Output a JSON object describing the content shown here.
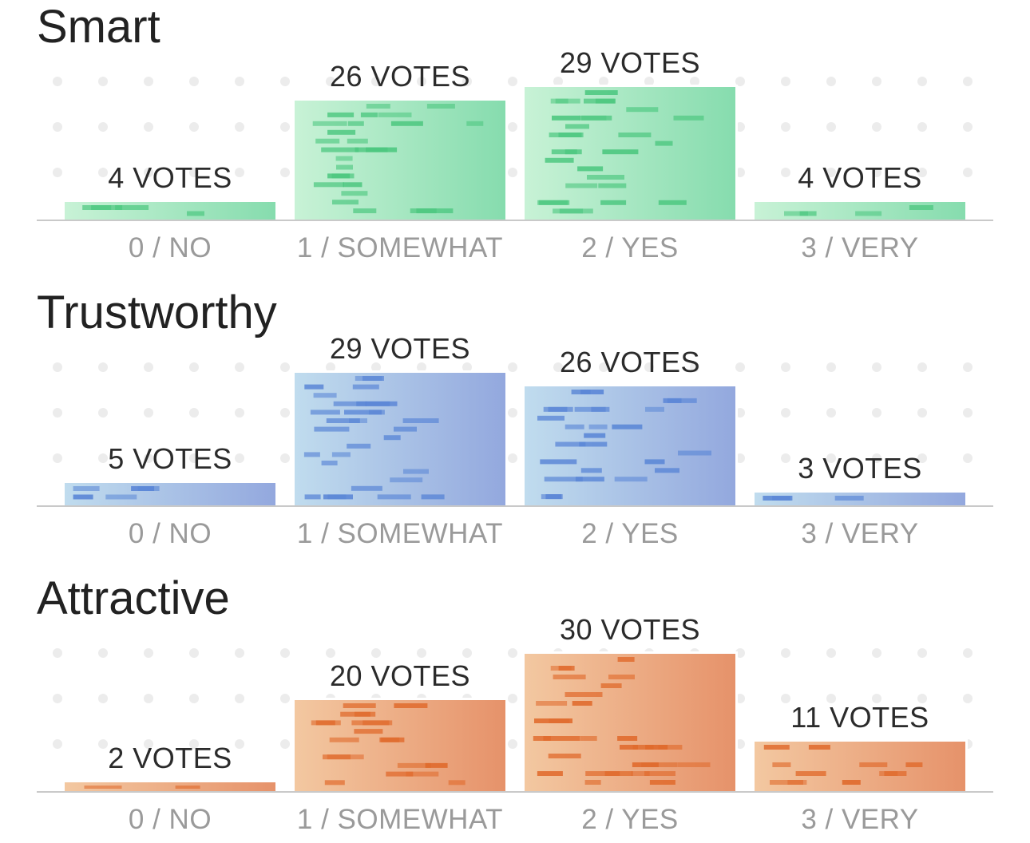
{
  "chart_data": [
    {
      "type": "bar",
      "title": "Smart",
      "categories": [
        "0 / NO",
        "1 / SOMEWHAT",
        "2 / YES",
        "3 / VERY"
      ],
      "values": [
        4,
        26,
        29,
        4
      ],
      "value_labels": [
        "4 VOTES",
        "26 VOTES",
        "29 VOTES",
        "4 VOTES"
      ],
      "color_light": "#c8f2d6",
      "color_dark": "#86dcae",
      "color_dash": "#4cc77f",
      "ylim": [
        0,
        30
      ],
      "grid": "dots"
    },
    {
      "type": "bar",
      "title": "Trustworthy",
      "categories": [
        "0 / NO",
        "1 / SOMEWHAT",
        "2 / YES",
        "3 / VERY"
      ],
      "values": [
        5,
        29,
        26,
        3
      ],
      "value_labels": [
        "5 VOTES",
        "29 VOTES",
        "26 VOTES",
        "3 VOTES"
      ],
      "color_light": "#c0dcee",
      "color_dark": "#93a8de",
      "color_dash": "#5a86d6",
      "ylim": [
        0,
        30
      ],
      "grid": "dots"
    },
    {
      "type": "bar",
      "title": "Attractive",
      "categories": [
        "0 / NO",
        "1 / SOMEWHAT",
        "2 / YES",
        "3 / VERY"
      ],
      "values": [
        2,
        20,
        30,
        11
      ],
      "value_labels": [
        "2 VOTES",
        "20 VOTES",
        "30 VOTES",
        "11 VOTES"
      ],
      "color_light": "#f3c8a1",
      "color_dark": "#e6926a",
      "color_dash": "#e06a2c",
      "ylim": [
        0,
        30
      ],
      "grid": "dots"
    }
  ]
}
